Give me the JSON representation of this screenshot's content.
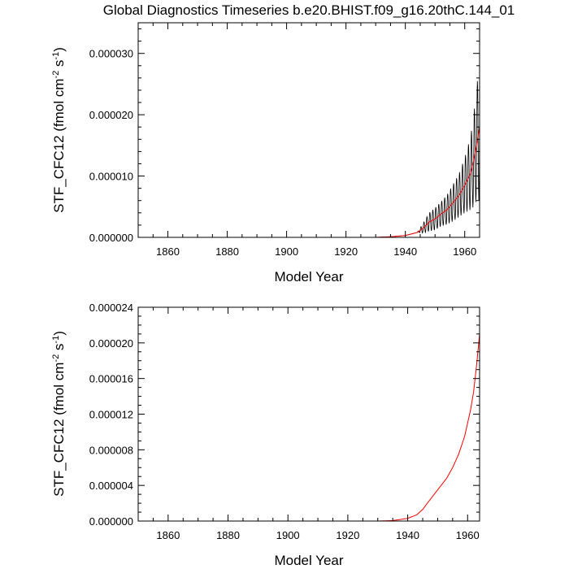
{
  "title": "Global Diagnostics Timeseries b.e20.BHIST.f09_g16.20thC.144_01",
  "chart_data": [
    {
      "type": "line",
      "xlabel": "Model Year",
      "ylabel_base": "STF_CFC12 (fmol cm",
      "ylabel_exp1": "-2",
      "ylabel_mid": " s",
      "ylabel_exp2": "-1",
      "ylabel_end": ")",
      "xlim": [
        1850,
        1965
      ],
      "ylim": [
        0,
        3.5e-05
      ],
      "xticks": [
        "1860",
        "1880",
        "1900",
        "1920",
        "1940",
        "1960"
      ],
      "xtick_values": [
        1860,
        1880,
        1900,
        1920,
        1940,
        1960
      ],
      "yticks": [
        "0.000000",
        "0.000010",
        "0.000020",
        "0.000030"
      ],
      "ytick_values": [
        0,
        1e-05,
        2e-05,
        3e-05
      ],
      "series": [
        {
          "color": "#000000",
          "style": "monthly-oscillating",
          "x": [
            1850,
            1930,
            1935,
            1940,
            1944,
            1946,
            1948,
            1950,
            1952,
            1954,
            1956,
            1958,
            1960,
            1962,
            1963,
            1964,
            1965
          ],
          "y": [
            0,
            0,
            1e-07,
            3e-07,
            8e-07,
            1.5e-06,
            2.5e-06,
            3e-06,
            3.8e-06,
            4.5e-06,
            5.6e-06,
            6.8e-06,
            8.5e-06,
            1.05e-05,
            1.25e-05,
            1.5e-05,
            1.8e-05
          ],
          "amplitude": [
            0,
            0,
            0,
            0,
            0,
            8e-07,
            1.5e-06,
            1.8e-06,
            2e-06,
            2.4e-06,
            3e-06,
            3.5e-06,
            4.5e-06,
            6e-06,
            7.5e-06,
            9e-06,
            1.2e-05
          ]
        },
        {
          "color": "#ff0000",
          "style": "smooth",
          "x": [
            1850,
            1930,
            1935,
            1940,
            1944,
            1946,
            1948,
            1950,
            1952,
            1954,
            1956,
            1958,
            1960,
            1962,
            1963,
            1964,
            1965
          ],
          "y": [
            0,
            0,
            1e-07,
            3e-07,
            8e-07,
            1.5e-06,
            2.5e-06,
            3e-06,
            3.8e-06,
            4.5e-06,
            5.6e-06,
            6.8e-06,
            8.5e-06,
            1.05e-05,
            1.25e-05,
            1.5e-05,
            1.8e-05
          ]
        }
      ]
    },
    {
      "type": "line",
      "xlabel": "Model Year",
      "ylabel_base": "STF_CFC12 (fmol cm",
      "ylabel_exp1": "-2",
      "ylabel_mid": " s",
      "ylabel_exp2": "-1",
      "ylabel_end": ")",
      "xlim": [
        1850,
        1964
      ],
      "ylim": [
        0,
        2.4e-05
      ],
      "xticks": [
        "1860",
        "1880",
        "1900",
        "1920",
        "1940",
        "1960"
      ],
      "xtick_values": [
        1860,
        1880,
        1900,
        1920,
        1940,
        1960
      ],
      "yticks": [
        "0.000000",
        "0.000004",
        "0.000008",
        "0.000012",
        "0.000016",
        "0.000020",
        "0.000024"
      ],
      "ytick_values": [
        0,
        4e-06,
        8e-06,
        1.2e-05,
        1.6e-05,
        2e-05,
        2.4e-05
      ],
      "series": [
        {
          "color": "#ff0000",
          "style": "smooth",
          "x": [
            1850,
            1930,
            1935,
            1940,
            1943,
            1945,
            1947,
            1950,
            1953,
            1955,
            1957,
            1959,
            1960,
            1961,
            1962,
            1963,
            1964
          ],
          "y": [
            0,
            0,
            5e-08,
            3e-07,
            7e-07,
            1.3e-06,
            2.2e-06,
            3.5e-06,
            4.8e-06,
            6e-06,
            7.5e-06,
            9.5e-06,
            1.1e-05,
            1.25e-05,
            1.45e-05,
            1.75e-05,
            2.1e-05
          ]
        }
      ]
    }
  ]
}
